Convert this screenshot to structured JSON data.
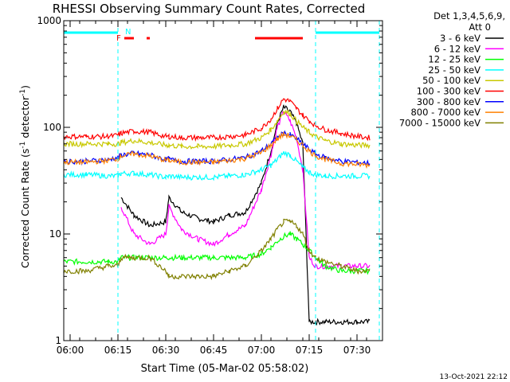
{
  "title": "RHESSI Observing Summary Count Rates, Corrected",
  "xlabel": "Start Time (05-Mar-02 05:58:02)",
  "ylabel_main": "Corrected Count Rate (s",
  "ylabel_sup1": "-1",
  "ylabel_mid": " detector",
  "ylabel_sup2": "-1",
  "ylabel_end": ")",
  "detector_line1": "Det 1,3,4,5,6,9,",
  "detector_line2": "Att 0",
  "footer_date": "13-Oct-2021 22:12",
  "flag_f": "F",
  "flag_n": "N",
  "colors": {
    "black": "#000000",
    "magenta": "#ff00ff",
    "green": "#00ff00",
    "cyan": "#00ffff",
    "yellow": "#c8c800",
    "red": "#ff0000",
    "blue": "#0000ff",
    "orange": "#ff8000",
    "olive": "#808000"
  },
  "chart_data": {
    "type": "line",
    "title": "RHESSI Observing Summary Count Rates, Corrected",
    "xlabel": "Start Time (05-Mar-02 05:58:02)",
    "ylabel": "Corrected Count Rate (s-1 detector-1)",
    "yscale": "log",
    "ylim": [
      1,
      1000
    ],
    "xlim": [
      "05:58",
      "07:38"
    ],
    "x_ticks": [
      "06:00",
      "06:15",
      "06:30",
      "06:45",
      "07:00",
      "07:15",
      "07:30"
    ],
    "y_ticks": [
      "1",
      "10",
      "100",
      "1000"
    ],
    "legend_position": "right",
    "x_times": [
      "05:58",
      "06:05",
      "06:12",
      "06:15",
      "06:16",
      "06:20",
      "06:25",
      "06:30",
      "06:31",
      "06:35",
      "06:40",
      "06:45",
      "06:50",
      "06:55",
      "07:00",
      "07:03",
      "07:05",
      "07:07",
      "07:09",
      "07:11",
      "07:13",
      "07:15",
      "07:17",
      "07:20",
      "07:25",
      "07:30",
      "07:34"
    ],
    "series": [
      {
        "name": "3 - 6 keV",
        "color": "#000000",
        "values": [
          null,
          null,
          null,
          null,
          22,
          15,
          12,
          13,
          22,
          16,
          14,
          13,
          15,
          16,
          30,
          60,
          110,
          155,
          140,
          110,
          70,
          1.5,
          1.5,
          1.5,
          1.5,
          1.5,
          1.5
        ]
      },
      {
        "name": "6 - 12 keV",
        "color": "#ff00ff",
        "values": [
          null,
          null,
          null,
          null,
          18,
          10,
          8,
          10,
          18,
          11,
          9,
          8,
          10,
          12,
          26,
          55,
          100,
          140,
          115,
          80,
          40,
          6,
          5,
          5,
          5,
          5,
          5
        ]
      },
      {
        "name": "12 - 25 keV",
        "color": "#00ff00",
        "values": [
          5.5,
          5.5,
          5.5,
          5.5,
          6,
          6,
          6,
          6,
          6,
          6,
          6,
          6,
          6,
          6,
          6.5,
          7.5,
          8.5,
          9.5,
          10,
          9,
          8,
          7,
          6,
          5,
          4.5,
          4.5,
          4.5
        ]
      },
      {
        "name": "25 - 50 keV",
        "color": "#00ffff",
        "values": [
          36,
          36,
          35,
          35,
          37,
          37,
          36,
          34,
          35,
          34,
          34,
          34,
          35,
          36,
          40,
          44,
          50,
          58,
          55,
          48,
          42,
          38,
          36,
          35,
          35,
          35,
          35
        ]
      },
      {
        "name": "50 - 100 keV",
        "color": "#c8c800",
        "values": [
          70,
          70,
          70,
          70,
          72,
          75,
          72,
          68,
          68,
          66,
          66,
          66,
          68,
          70,
          80,
          95,
          115,
          140,
          135,
          115,
          100,
          90,
          82,
          75,
          70,
          68,
          68
        ]
      },
      {
        "name": "100 - 300 keV",
        "color": "#ff0000",
        "values": [
          82,
          82,
          82,
          84,
          88,
          92,
          90,
          82,
          82,
          80,
          80,
          80,
          82,
          85,
          98,
          120,
          150,
          185,
          175,
          150,
          130,
          115,
          105,
          95,
          88,
          82,
          80
        ]
      },
      {
        "name": "300 - 800 keV",
        "color": "#0000ff",
        "values": [
          48,
          48,
          50,
          52,
          55,
          57,
          55,
          50,
          50,
          48,
          48,
          48,
          50,
          52,
          60,
          70,
          80,
          88,
          85,
          78,
          70,
          62,
          56,
          52,
          48,
          47,
          46
        ]
      },
      {
        "name": "800 - 7000 keV",
        "color": "#ff8000",
        "values": [
          47,
          47,
          49,
          51,
          54,
          56,
          54,
          49,
          49,
          47,
          47,
          47,
          49,
          51,
          58,
          68,
          78,
          86,
          83,
          76,
          68,
          60,
          54,
          50,
          46,
          45,
          44
        ]
      },
      {
        "name": "7000 - 15000 keV",
        "color": "#808000",
        "values": [
          4.5,
          4.5,
          5,
          5,
          6,
          6,
          6,
          4.5,
          4,
          4,
          4,
          4,
          4.5,
          5,
          7,
          9,
          11,
          13,
          13,
          12,
          10,
          7,
          6,
          5.5,
          5,
          4.5,
          4.5
        ]
      }
    ],
    "attenuator_bar": [
      [
        "05:58",
        "06:15"
      ],
      [
        "07:17",
        "07:37"
      ]
    ],
    "flare_flag_bar": [
      [
        "06:17",
        "06:20"
      ],
      [
        "06:24",
        "06:25"
      ],
      [
        "06:58",
        "07:13"
      ]
    ],
    "saa_dashed_lines": [
      "06:15",
      "07:17",
      "07:37"
    ]
  }
}
